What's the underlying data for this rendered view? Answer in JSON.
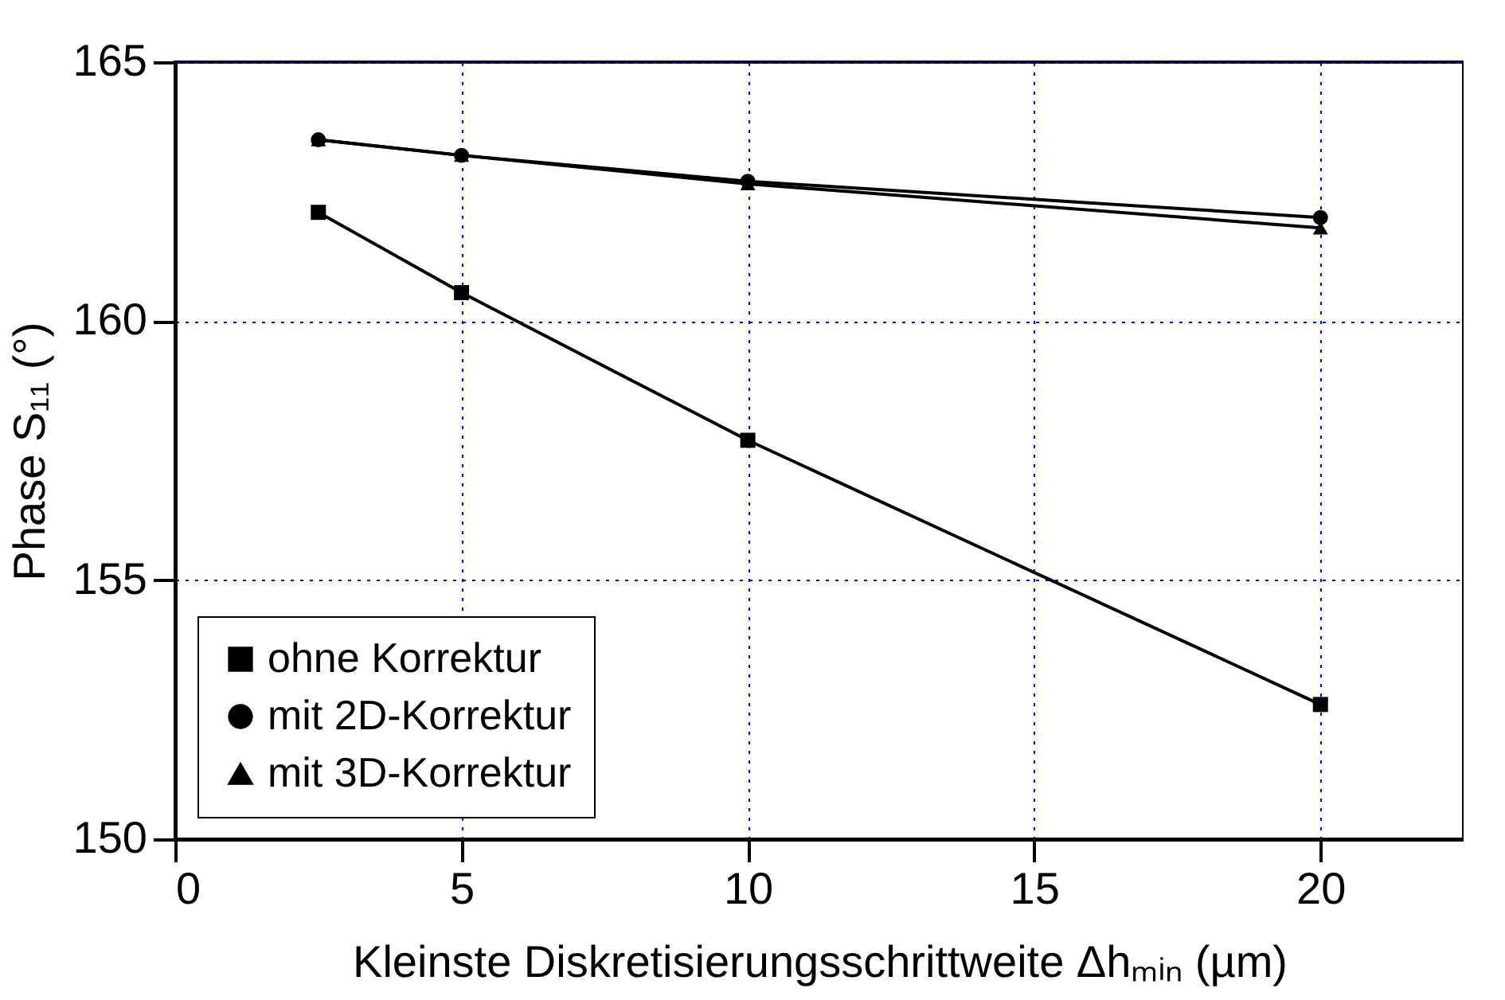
{
  "chart_data": {
    "type": "line",
    "xlabel": "Kleinste Diskretisierungsschrittweite Δhₘᵢₙ  (µm)",
    "ylabel": "Phase S₁₁  (°)",
    "x": [
      2.5,
      5,
      10,
      20
    ],
    "series": [
      {
        "name": "ohne Korrektur",
        "color": "#000000",
        "marker": "square",
        "values": [
          162.1,
          160.55,
          157.7,
          152.6
        ]
      },
      {
        "name": "mit 2D-Korrektur",
        "color": "#000000",
        "marker": "circle",
        "values": [
          163.5,
          163.2,
          162.7,
          162.0
        ]
      },
      {
        "name": "mit 3D-Korrektur",
        "color": "#000000",
        "marker": "triangle",
        "values": [
          163.5,
          163.2,
          162.65,
          161.8
        ]
      }
    ],
    "xlim": [
      0,
      22.5
    ],
    "xticks": [
      0,
      5,
      10,
      15,
      20
    ],
    "ylim": [
      150,
      165
    ],
    "yticks": [
      150,
      155,
      160,
      165
    ],
    "grid": true,
    "legend": "bottom left",
    "line_style": "solid"
  }
}
